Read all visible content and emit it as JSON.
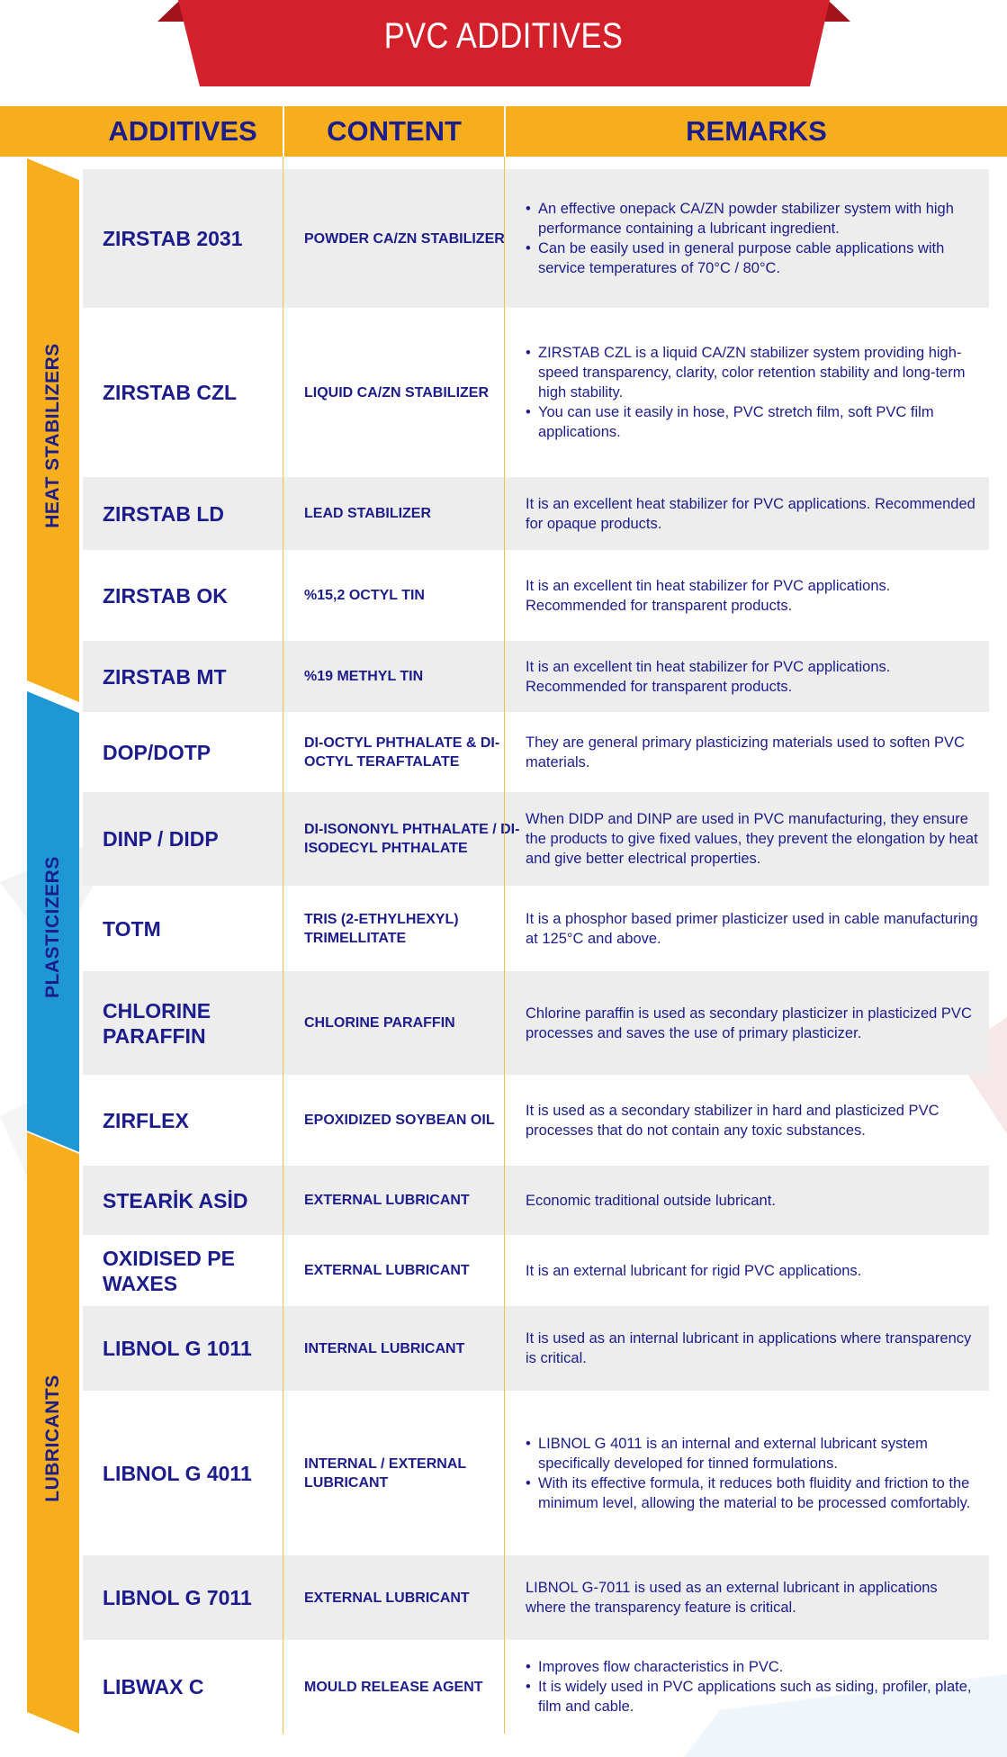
{
  "title": "PVC ADDITIVES",
  "headers": {
    "additives": "ADDITIVES",
    "content": "CONTENT",
    "remarks": "REMARKS"
  },
  "categories": [
    {
      "label": "HEAT STABILIZERS",
      "color": "#f7ae1c",
      "text_color": "#1c1c8c"
    },
    {
      "label": "PLASTICIZERS",
      "color": "#1f97d4",
      "text_color": "#1c1c8c"
    },
    {
      "label": "LUBRICANTS",
      "color": "#f7ae1c",
      "text_color": "#1c1c8c"
    }
  ],
  "rows": [
    {
      "name": "ZIRSTAB 2031",
      "content": "POWDER CA/ZN STABILIZER",
      "remarks": [
        "An effective onepack CA/ZN powder stabilizer system with high performance containing a lubricant ingredient.",
        "Can be easily used in general purpose cable applications with service temperatures of 70°C / 80°C."
      ]
    },
    {
      "name": "ZIRSTAB CZL",
      "content": "LIQUID CA/ZN STABILIZER",
      "remarks": [
        "ZIRSTAB CZL is a liquid CA/ZN stabilizer system providing high-speed transparency, clarity, color retention stability and long-term high stability.",
        "You can use it easily in hose, PVC stretch film, soft PVC film applications."
      ]
    },
    {
      "name": "ZIRSTAB LD",
      "content": "LEAD STABILIZER",
      "remarks": "It is an excellent heat stabilizer for PVC applications. Recommended for opaque products."
    },
    {
      "name": "ZIRSTAB OK",
      "content": "%15,2 OCTYL TIN",
      "remarks": "It is an excellent tin heat stabilizer for PVC applications. Recommended for transparent products."
    },
    {
      "name": "ZIRSTAB MT",
      "content": "%19 METHYL TIN",
      "remarks": "It is an excellent tin heat stabilizer for PVC applications. Recommended for transparent products."
    },
    {
      "name": "DOP/DOTP",
      "content": "DI-OCTYL PHTHALATE & DI-OCTYL TERAFTALATE",
      "remarks": "They are general primary plasticizing materials used to soften PVC materials."
    },
    {
      "name": "DINP / DIDP",
      "content": "DI-ISONONYL PHTHALATE / DI-ISODECYL PHTHALATE",
      "remarks": "When DIDP and DINP are used in PVC manufacturing, they ensure the products to give fixed values, they prevent the elongation by heat and give better electrical properties."
    },
    {
      "name": "TOTM",
      "content": "TRIS (2-ETHYLHEXYL) TRIMELLITATE",
      "remarks": "It is a phosphor based primer plasticizer used in cable manufacturing at 125°C and above."
    },
    {
      "name": "CHLORINE PARAFFIN",
      "content": "CHLORINE PARAFFIN",
      "remarks": "Chlorine paraffin is used as secondary plasticizer in plasticized PVC processes and saves the use of primary plasticizer."
    },
    {
      "name": "ZIRFLEX",
      "content": "EPOXIDIZED SOYBEAN OIL",
      "remarks": "It is used as a secondary stabilizer in hard and plasticized PVC processes that do not contain any toxic substances."
    },
    {
      "name": "STEARİK ASİD",
      "content": "EXTERNAL LUBRICANT",
      "remarks": "Economic traditional outside lubricant."
    },
    {
      "name": "OXIDISED PE WAXES",
      "content": "EXTERNAL LUBRICANT",
      "remarks": "It is an external lubricant for rigid PVC applications."
    },
    {
      "name": "LIBNOL G 1011",
      "content": "INTERNAL LUBRICANT",
      "remarks": "It is used as an internal lubricant in applications where transparency is critical."
    },
    {
      "name": "LIBNOL G 4011",
      "content": "INTERNAL / EXTERNAL LUBRICANT",
      "remarks": [
        "LIBNOL G 4011 is an internal and external lubricant system specifically developed for tinned formulations.",
        "With its effective formula, it reduces both fluidity and friction to the minimum level, allowing the material to be processed comfortably."
      ]
    },
    {
      "name": "LIBNOL G 7011",
      "content": "EXTERNAL LUBRICANT",
      "remarks": "LIBNOL G-7011 is used as an external lubricant in applications where the transparency feature is critical."
    },
    {
      "name": "LIBWAX C",
      "content": "MOULD RELEASE AGENT",
      "remarks": [
        "Improves flow characteristics in PVC.",
        "It is widely used in PVC applications such as siding, profiler, plate, film and cable."
      ]
    }
  ]
}
